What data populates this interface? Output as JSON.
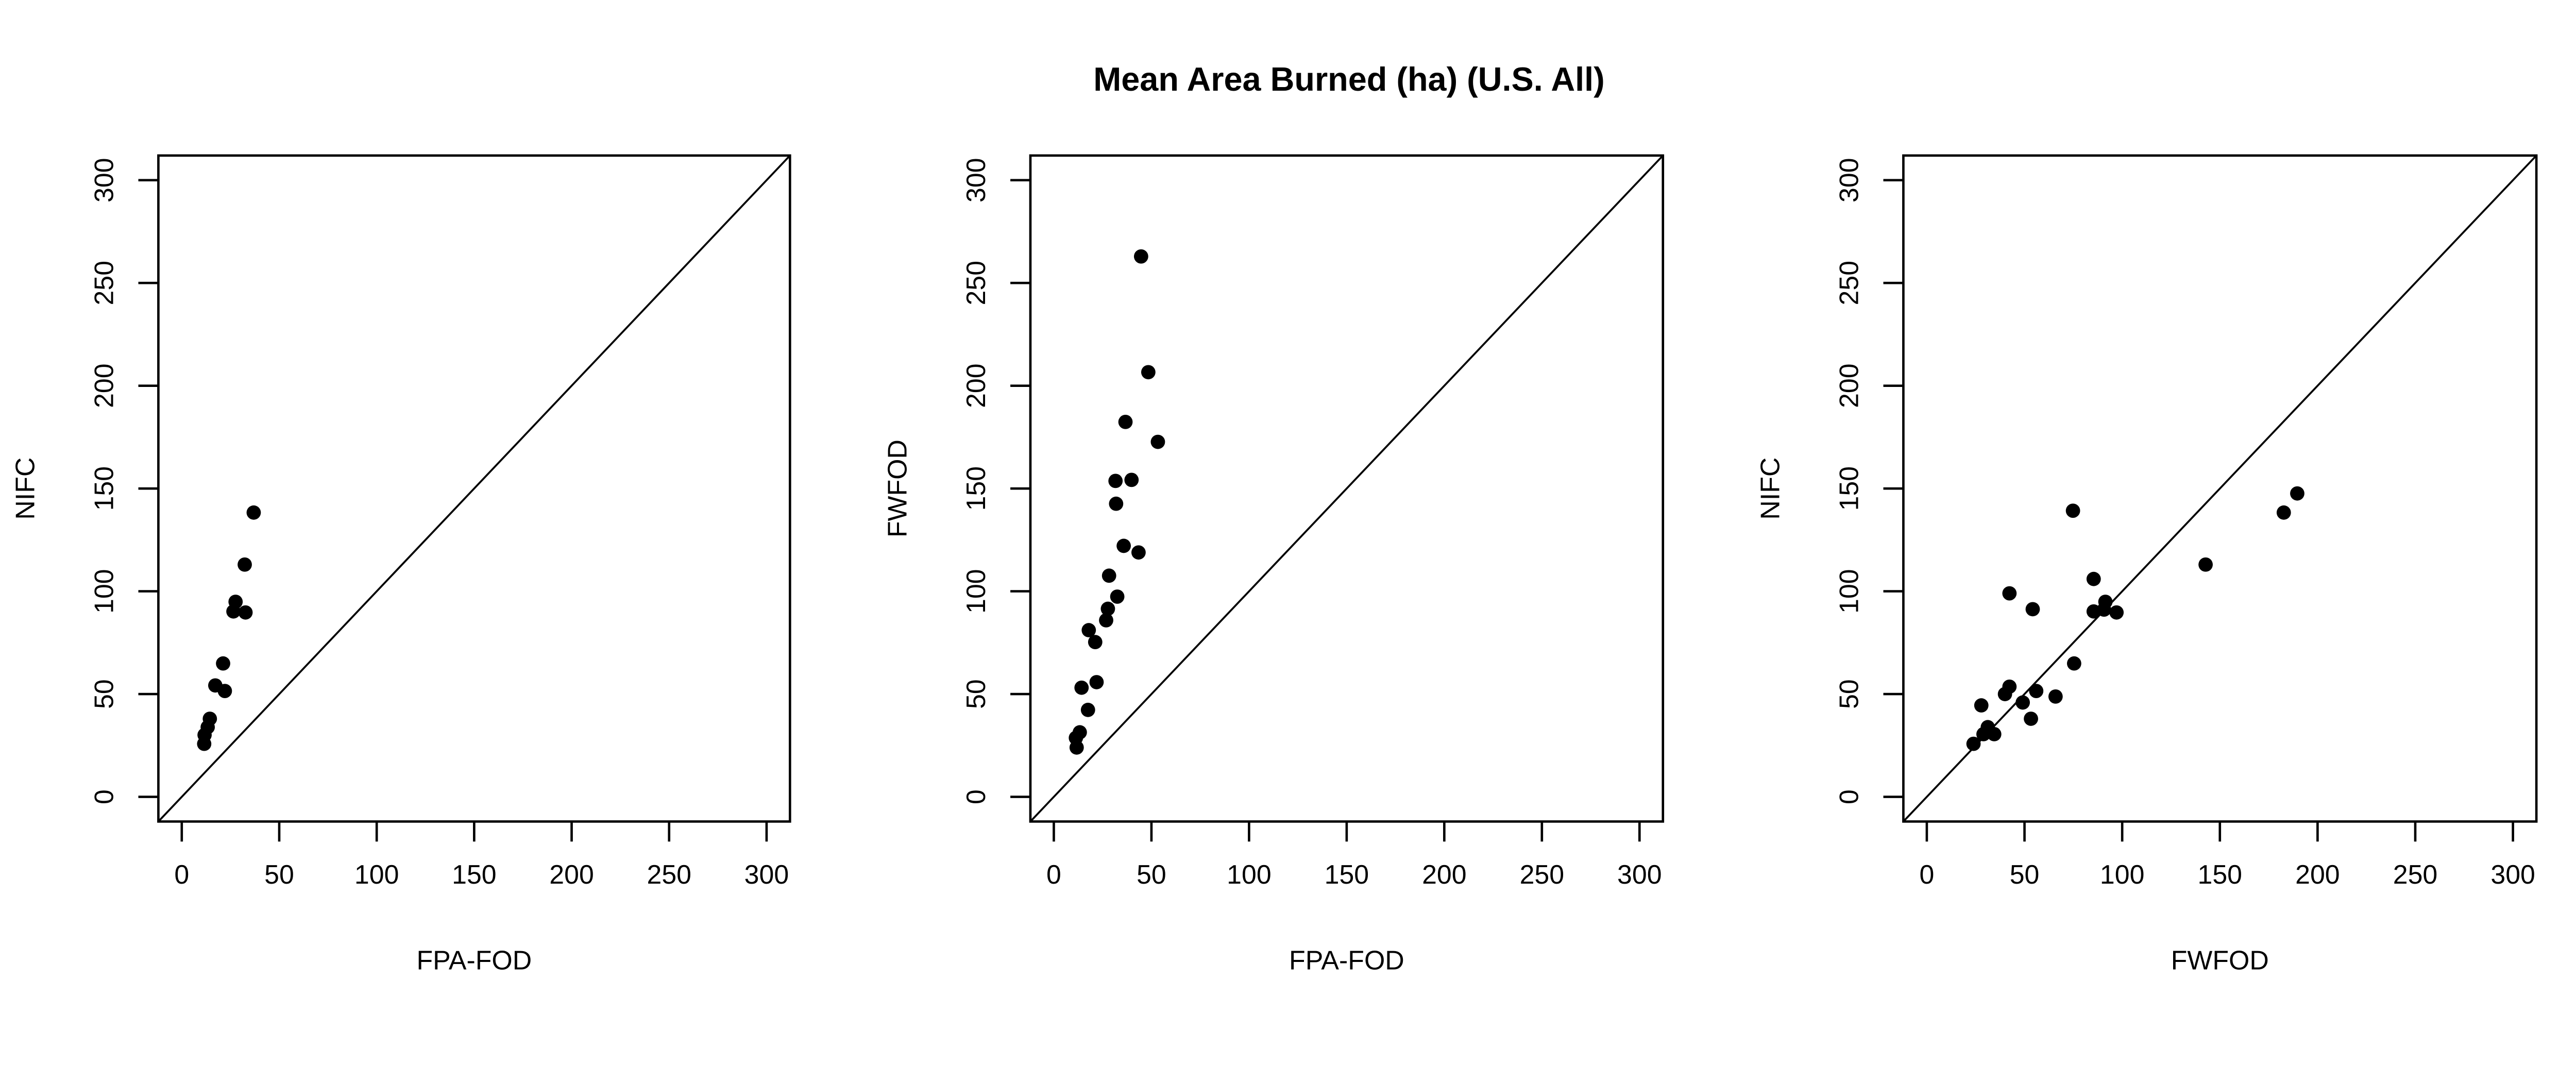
{
  "chart_data": {
    "title": "Mean Area Burned (ha) (U.S. All)",
    "panels": [
      {
        "type": "scatter",
        "xlabel": "FPA-FOD",
        "ylabel": "NIFC",
        "xlim": [
          -12,
          312
        ],
        "ylim": [
          -12,
          312
        ],
        "xticks": [
          "0",
          "50",
          "100",
          "150",
          "200",
          "250",
          "300"
        ],
        "yticks": [
          "0",
          "50",
          "100",
          "150",
          "200",
          "250",
          "300"
        ],
        "reference_line": "y = x",
        "points": [
          [
            36.9,
            138.3
          ],
          [
            32.3,
            113
          ],
          [
            27.6,
            94.9
          ],
          [
            26.5,
            90.2
          ],
          [
            32.7,
            89.7
          ],
          [
            21.2,
            64.9
          ],
          [
            17.2,
            54.2
          ],
          [
            22.1,
            51.5
          ],
          [
            14.4,
            38
          ],
          [
            13.3,
            33.9
          ],
          [
            11.7,
            30.1
          ],
          [
            11.5,
            25.8
          ]
        ]
      },
      {
        "type": "scatter",
        "xlabel": "FPA-FOD",
        "ylabel": "FWFOD",
        "xlim": [
          -12,
          312
        ],
        "ylim": [
          -12,
          312
        ],
        "xticks": [
          "0",
          "50",
          "100",
          "150",
          "200",
          "250",
          "300"
        ],
        "yticks": [
          "0",
          "50",
          "100",
          "150",
          "200",
          "250",
          "300"
        ],
        "reference_line": "y = x",
        "points": [
          [
            44.7,
            262.9
          ],
          [
            48.4,
            206.6
          ],
          [
            36.7,
            182.4
          ],
          [
            53.3,
            172.7
          ],
          [
            31.6,
            153.7
          ],
          [
            39.8,
            154.2
          ],
          [
            31.9,
            142.6
          ],
          [
            35.8,
            122.1
          ],
          [
            43.4,
            118.9
          ],
          [
            28.3,
            107.6
          ],
          [
            32.5,
            97.4
          ],
          [
            27.7,
            91.5
          ],
          [
            26.8,
            85.9
          ],
          [
            17.9,
            81.1
          ],
          [
            21.2,
            75.3
          ],
          [
            21.9,
            55.8
          ],
          [
            14.2,
            53.1
          ],
          [
            17.5,
            42.3
          ],
          [
            13.3,
            31.4
          ],
          [
            11.3,
            28.7
          ],
          [
            11.7,
            24
          ]
        ]
      },
      {
        "type": "scatter",
        "xlabel": "FWFOD",
        "ylabel": "NIFC",
        "xlim": [
          -12,
          312
        ],
        "ylim": [
          -12,
          312
        ],
        "xticks": [
          "0",
          "50",
          "100",
          "150",
          "200",
          "250",
          "300"
        ],
        "yticks": [
          "0",
          "50",
          "100",
          "150",
          "200",
          "250",
          "300"
        ],
        "reference_line": "y = x",
        "points": [
          [
            189.6,
            147.6
          ],
          [
            182.7,
            138.3
          ],
          [
            74.8,
            139.2
          ],
          [
            142.7,
            113
          ],
          [
            85.4,
            106
          ],
          [
            42.3,
            99
          ],
          [
            54.2,
            91.3
          ],
          [
            91.4,
            94.9
          ],
          [
            85.4,
            90.2
          ],
          [
            90.7,
            91.1
          ],
          [
            97.1,
            89.7
          ],
          [
            75.4,
            64.9
          ],
          [
            42.3,
            53.6
          ],
          [
            40,
            50
          ],
          [
            56,
            51.5
          ],
          [
            65.9,
            48.8
          ],
          [
            49.1,
            45.9
          ],
          [
            27.9,
            44.5
          ],
          [
            53.3,
            38
          ],
          [
            31.2,
            33.9
          ],
          [
            29,
            30.5
          ],
          [
            34.5,
            30.5
          ],
          [
            23.9,
            25.8
          ]
        ]
      }
    ]
  }
}
